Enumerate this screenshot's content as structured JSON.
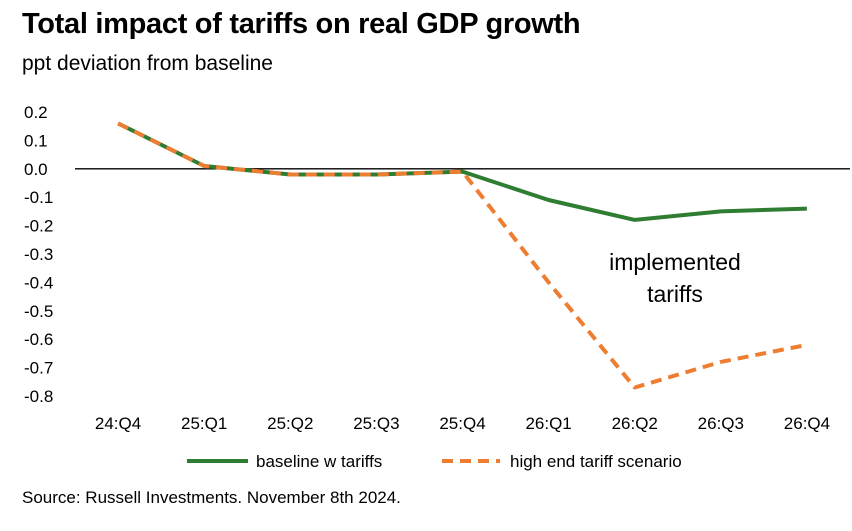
{
  "title": "Total impact of tariffs on real GDP growth",
  "subtitle": "ppt deviation from baseline",
  "source": "Source: Russell Investments. November 8th 2024.",
  "colors": {
    "baseline": "#2e7d32",
    "high_end": "#ed7d31",
    "axis": "#000000"
  },
  "chart_data": {
    "type": "line",
    "categories": [
      "24:Q4",
      "25:Q1",
      "25:Q2",
      "25:Q3",
      "25:Q4",
      "26:Q1",
      "26:Q2",
      "26:Q3",
      "26:Q4"
    ],
    "series": [
      {
        "name": "baseline w tariffs",
        "values": [
          0.16,
          0.01,
          -0.02,
          -0.02,
          -0.01,
          -0.11,
          -0.18,
          -0.15,
          -0.14
        ],
        "style": "solid"
      },
      {
        "name": "high end tariff scenario",
        "values": [
          0.16,
          0.01,
          -0.02,
          -0.02,
          -0.01,
          -0.4,
          -0.77,
          -0.68,
          -0.62
        ],
        "style": "dashed"
      }
    ],
    "y_ticks": [
      "0.2",
      "0.1",
      "0.0",
      "-0.1",
      "-0.2",
      "-0.3",
      "-0.4",
      "-0.5",
      "-0.6",
      "-0.7",
      "-0.8"
    ],
    "ylim": [
      -0.8,
      0.2
    ],
    "annotation": [
      "implemented",
      "tariffs"
    ],
    "legend_position": "bottom",
    "grid": false
  }
}
